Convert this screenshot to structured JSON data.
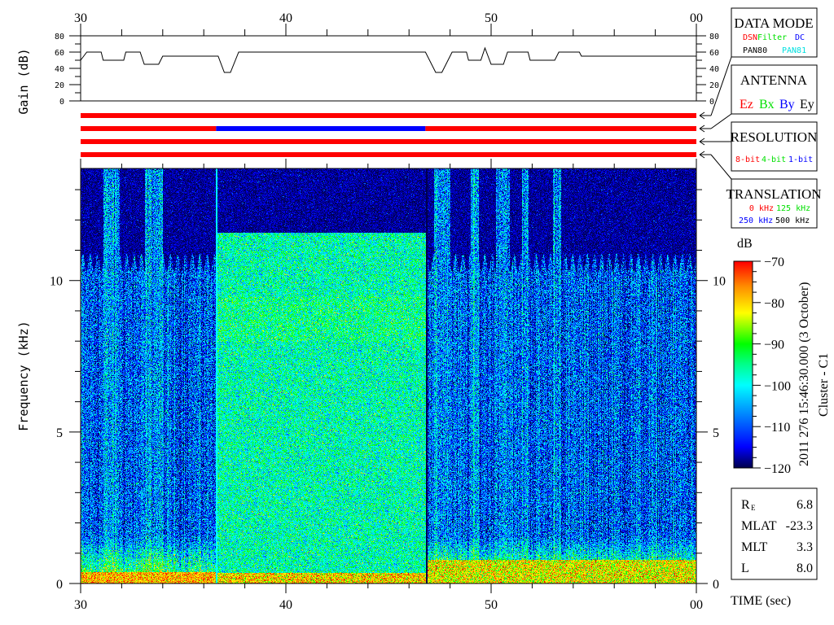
{
  "chart_data": [
    {
      "type": "line",
      "ylabel": "Gain (dB)",
      "ylim": [
        0,
        80
      ],
      "yticks": [
        "0",
        "20",
        "40",
        "60",
        "80"
      ],
      "xlim": [
        30,
        60
      ],
      "xtick_labels": [
        "30",
        "40",
        "50",
        "00"
      ],
      "points": [
        [
          30,
          50
        ],
        [
          30.3,
          60
        ],
        [
          31.0,
          60
        ],
        [
          31.1,
          50
        ],
        [
          32.1,
          50
        ],
        [
          32.2,
          60
        ],
        [
          32.9,
          60
        ],
        [
          33.1,
          45
        ],
        [
          33.8,
          45
        ],
        [
          34.0,
          55
        ],
        [
          36.7,
          55
        ],
        [
          37.0,
          35
        ],
        [
          37.3,
          35
        ],
        [
          37.7,
          60
        ],
        [
          46.8,
          60
        ],
        [
          47.3,
          35
        ],
        [
          47.6,
          35
        ],
        [
          48.1,
          60
        ],
        [
          48.8,
          60
        ],
        [
          48.9,
          50
        ],
        [
          49.5,
          50
        ],
        [
          49.7,
          65
        ],
        [
          50.0,
          45
        ],
        [
          50.6,
          45
        ],
        [
          50.8,
          60
        ],
        [
          51.8,
          60
        ],
        [
          51.9,
          50
        ],
        [
          53.1,
          50
        ],
        [
          53.3,
          60
        ],
        [
          54.3,
          60
        ],
        [
          54.4,
          55
        ],
        [
          60,
          55
        ]
      ]
    },
    {
      "type": "heatmap",
      "xlabel": "TIME (sec)",
      "ylabel": "Frequency (kHz)",
      "xlim": [
        30,
        60
      ],
      "ylim": [
        0,
        13.7
      ],
      "xtick_labels": [
        "30",
        "40",
        "50",
        "00"
      ],
      "yticks": [
        "0",
        "5",
        "10"
      ],
      "colorbar": {
        "label": "dB",
        "range": [
          -120,
          -70
        ],
        "ticks": [
          "-70",
          "-80",
          "-90",
          "-100",
          "-110",
          "-120"
        ]
      },
      "side_title": "2011 276 15:46:30.000 (3 October)",
      "spacecraft": "Cluster - C1"
    }
  ],
  "status_bars": {
    "antenna_segments": [
      {
        "row": 1,
        "from": 30,
        "to": 60,
        "color": "#ff0000"
      },
      {
        "row": 2,
        "from": 30,
        "to": 36.6,
        "color": "#ff0000"
      },
      {
        "row": 2,
        "from": 36.6,
        "to": 46.8,
        "color": "#0000ff"
      },
      {
        "row": 2,
        "from": 46.8,
        "to": 60,
        "color": "#ff0000"
      },
      {
        "row": 3,
        "from": 30,
        "to": 60,
        "color": "#ff0000"
      },
      {
        "row": 4,
        "from": 30,
        "to": 60,
        "color": "#ff0000"
      }
    ]
  },
  "legend_boxes": {
    "data_mode": {
      "title": "DATA MODE",
      "items": [
        {
          "label": "DSN",
          "color": "#ff0000"
        },
        {
          "label": "Filter",
          "color": "#00e000"
        },
        {
          "label": "DC",
          "color": "#0000ff"
        },
        {
          "label": "PAN80",
          "color": "#000000"
        },
        {
          "label": "PAN81",
          "color": "#00e0e0"
        }
      ]
    },
    "antenna": {
      "title": "ANTENNA",
      "items": [
        {
          "label": "Ez",
          "color": "#ff0000"
        },
        {
          "label": "Bx",
          "color": "#00e000"
        },
        {
          "label": "By",
          "color": "#0000ff"
        },
        {
          "label": "Ey",
          "color": "#000000"
        }
      ]
    },
    "resolution": {
      "title": "RESOLUTION",
      "items": [
        {
          "label": "8-bit",
          "color": "#ff0000"
        },
        {
          "label": "4-bit",
          "color": "#00e000"
        },
        {
          "label": "1-bit",
          "color": "#0000ff"
        }
      ]
    },
    "translation": {
      "title": "TRANSLATION",
      "items": [
        {
          "label": "0 kHz",
          "color": "#ff0000"
        },
        {
          "label": "125 kHz",
          "color": "#00e000"
        },
        {
          "label": "250 kHz",
          "color": "#0000ff"
        },
        {
          "label": "500 kHz",
          "color": "#000000"
        }
      ]
    }
  },
  "orbit_info": [
    {
      "label": "R",
      "sub": "E",
      "value": "6.8"
    },
    {
      "label": "MLAT",
      "sub": "",
      "value": "-23.3"
    },
    {
      "label": "MLT",
      "sub": "",
      "value": "3.3"
    },
    {
      "label": "L",
      "sub": "",
      "value": "8.0"
    }
  ]
}
